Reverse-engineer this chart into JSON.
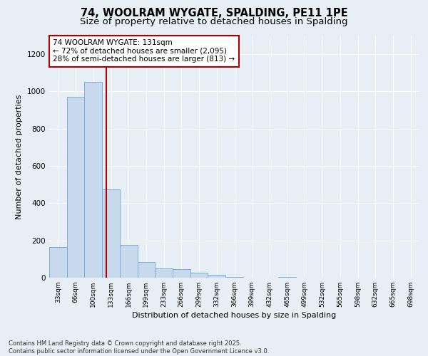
{
  "title": "74, WOOLRAM WYGATE, SPALDING, PE11 1PE",
  "subtitle": "Size of property relative to detached houses in Spalding",
  "xlabel": "Distribution of detached houses by size in Spalding",
  "ylabel": "Number of detached properties",
  "categories": [
    "33sqm",
    "66sqm",
    "100sqm",
    "133sqm",
    "166sqm",
    "199sqm",
    "233sqm",
    "266sqm",
    "299sqm",
    "332sqm",
    "366sqm",
    "399sqm",
    "432sqm",
    "465sqm",
    "499sqm",
    "532sqm",
    "565sqm",
    "598sqm",
    "632sqm",
    "665sqm",
    "698sqm"
  ],
  "values": [
    165,
    970,
    1050,
    475,
    175,
    85,
    50,
    45,
    25,
    15,
    5,
    0,
    0,
    5,
    0,
    0,
    0,
    0,
    0,
    0,
    0
  ],
  "bar_color": "#c8d9ee",
  "bar_edge_color": "#7aafd4",
  "background_color": "#e8eef5",
  "ylim": [
    0,
    1300
  ],
  "yticks": [
    0,
    200,
    400,
    600,
    800,
    1000,
    1200
  ],
  "annotation_line1": "74 WOOLRAM WYGATE: 131sqm",
  "annotation_line2": "← 72% of detached houses are smaller (2,095)",
  "annotation_line3": "28% of semi-detached houses are larger (813) →",
  "footer_line1": "Contains HM Land Registry data © Crown copyright and database right 2025.",
  "footer_line2": "Contains public sector information licensed under the Open Government Licence v3.0.",
  "title_fontsize": 10.5,
  "subtitle_fontsize": 9.5,
  "annotation_box_color": "#ffffff",
  "annotation_box_edge_color": "#aa0000",
  "vline_color": "#aa0000",
  "vline_x": 2.72
}
